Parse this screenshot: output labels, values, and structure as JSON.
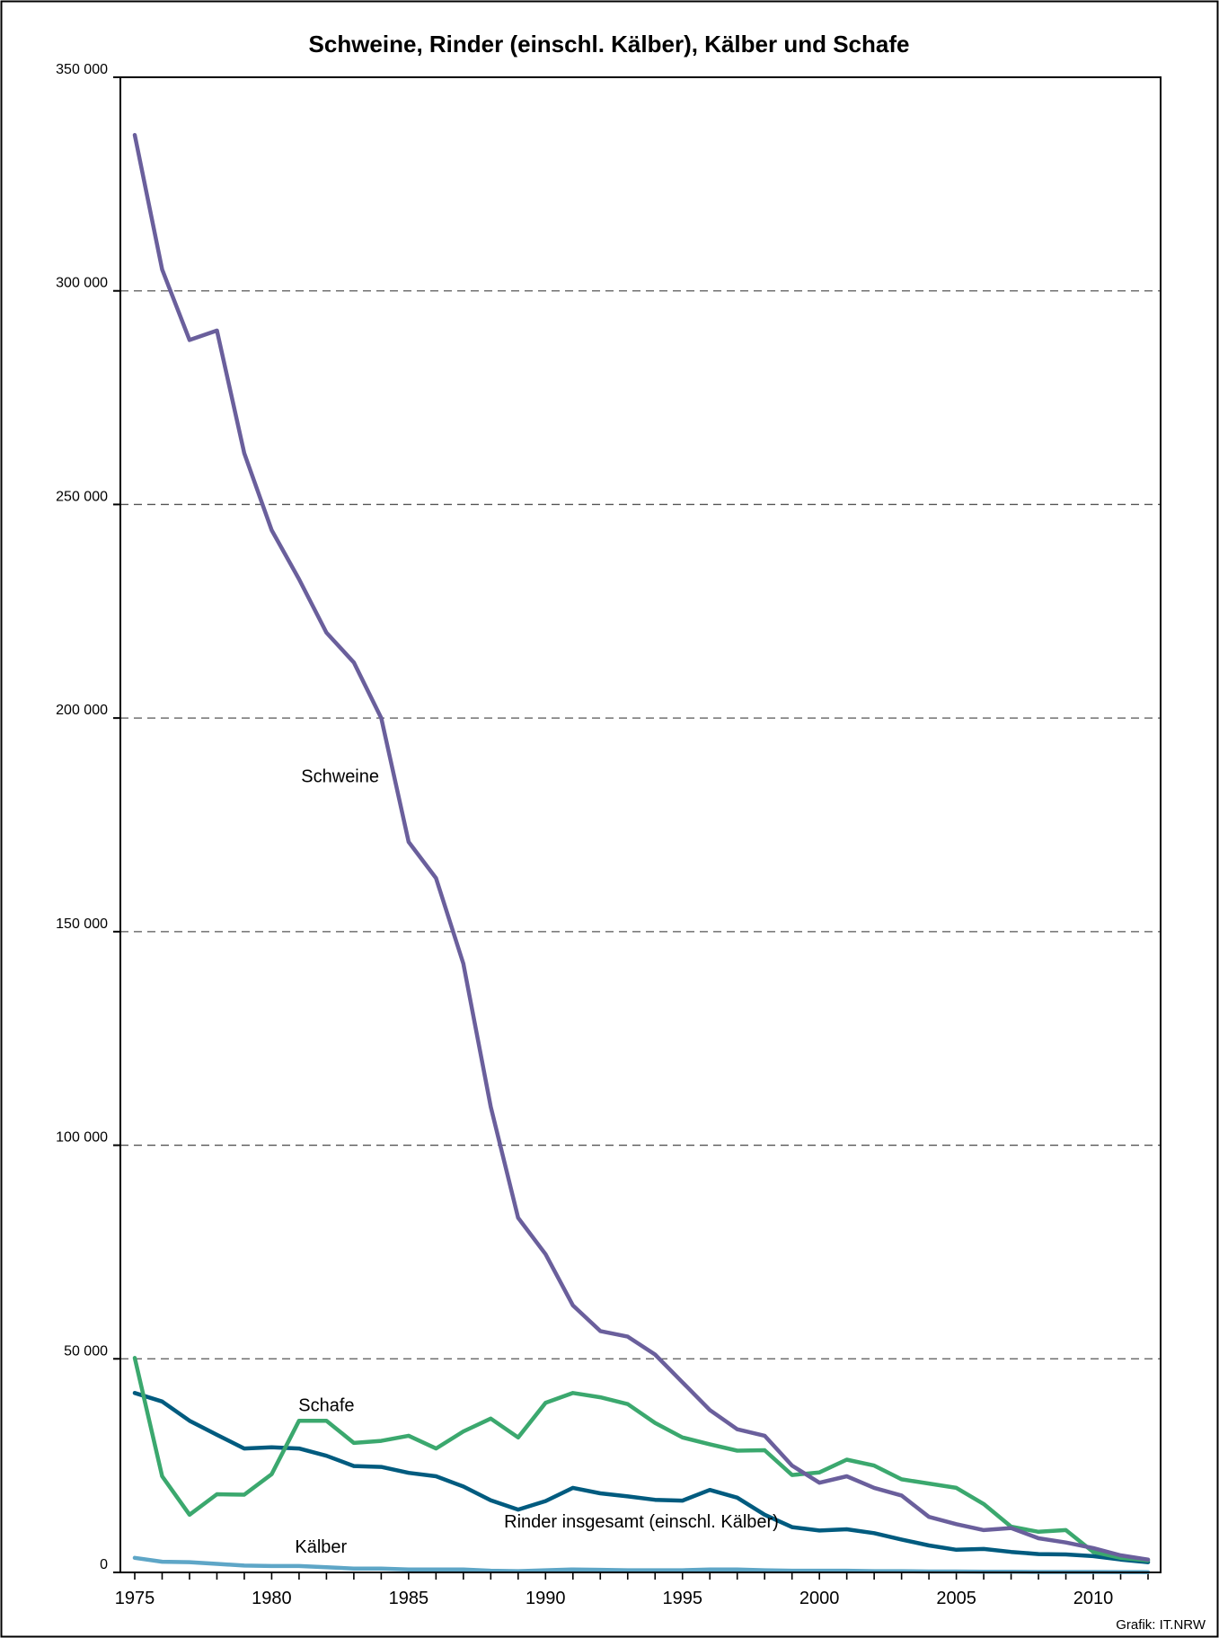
{
  "chart_data": {
    "type": "line",
    "title": "Schweine, Rinder (einschl. Kälber), Kälber und Schafe",
    "xlabel": "",
    "ylabel": "",
    "ylim": [
      0,
      350000
    ],
    "xlim": [
      1975,
      2012
    ],
    "yticks": [
      0,
      50000,
      100000,
      150000,
      200000,
      250000,
      300000,
      350000
    ],
    "ytick_labels": [
      "0",
      "50 000",
      "100 000",
      "150 000",
      "200 000",
      "250 000",
      "300 000",
      "350 000"
    ],
    "xticks": [
      1975,
      1980,
      1985,
      1990,
      1995,
      2000,
      2005,
      2010
    ],
    "xtick_labels": [
      "1975",
      "1980",
      "1985",
      "1990",
      "1995",
      "2000",
      "2005",
      "2010"
    ],
    "grid": "horizontal dashed",
    "x": [
      1975,
      1976,
      1977,
      1978,
      1979,
      1980,
      1981,
      1982,
      1983,
      1984,
      1985,
      1986,
      1987,
      1988,
      1989,
      1990,
      1991,
      1992,
      1993,
      1994,
      1995,
      1996,
      1997,
      1998,
      1999,
      2000,
      2001,
      2002,
      2003,
      2004,
      2005,
      2006,
      2007,
      2008,
      2009,
      2010,
      2011,
      2012
    ],
    "series": [
      {
        "name": "Schweine",
        "color": "#6a5f9c",
        "label_x": 1982.5,
        "label_y": 185000,
        "values": [
          336500,
          305000,
          288500,
          290700,
          262000,
          244000,
          232500,
          220000,
          213000,
          200000,
          171000,
          162500,
          142500,
          109000,
          83000,
          74500,
          62500,
          56500,
          55200,
          51000,
          44500,
          38000,
          33500,
          32000,
          25000,
          21000,
          22500,
          19800,
          18000,
          13000,
          11300,
          9900,
          10400,
          8000,
          7000,
          5700,
          4000,
          3000
        ]
      },
      {
        "name": "Rinder insgesamt (einschl. Kälber)",
        "color": "#005b7f",
        "label_x": 1993.5,
        "label_y": 10500,
        "values": [
          42000,
          40000,
          35500,
          32200,
          29000,
          29300,
          29000,
          27300,
          24900,
          24700,
          23300,
          22500,
          20100,
          16900,
          14700,
          16700,
          19800,
          18500,
          17800,
          17000,
          16800,
          19300,
          17500,
          13500,
          10600,
          9800,
          10100,
          9200,
          7700,
          6300,
          5300,
          5500,
          4800,
          4300,
          4200,
          3800,
          3000,
          2400
        ]
      },
      {
        "name": "Schafe",
        "color": "#3ba86e",
        "label_x": 1982,
        "label_y": 37800,
        "values": [
          50200,
          22500,
          13500,
          18300,
          18200,
          23000,
          35500,
          35500,
          30300,
          30800,
          32000,
          29000,
          33000,
          36000,
          31600,
          39700,
          42000,
          41000,
          39400,
          35000,
          31600,
          30000,
          28500,
          28600,
          22800,
          23400,
          26400,
          25000,
          21800,
          20800,
          19800,
          16000,
          10700,
          9500,
          9900,
          4800,
          3400,
          2800
        ]
      },
      {
        "name": "Kälber",
        "color": "#5ea6c7",
        "label_x": 1981.8,
        "label_y": 4600,
        "values": [
          3400,
          2500,
          2400,
          2000,
          1600,
          1500,
          1500,
          1200,
          900,
          900,
          700,
          700,
          700,
          400,
          300,
          500,
          700,
          600,
          500,
          500,
          500,
          700,
          700,
          500,
          400,
          400,
          400,
          300,
          300,
          200,
          200,
          150,
          150,
          100,
          100,
          100,
          80,
          60
        ]
      }
    ],
    "source_note": "Grafik: IT.NRW"
  }
}
